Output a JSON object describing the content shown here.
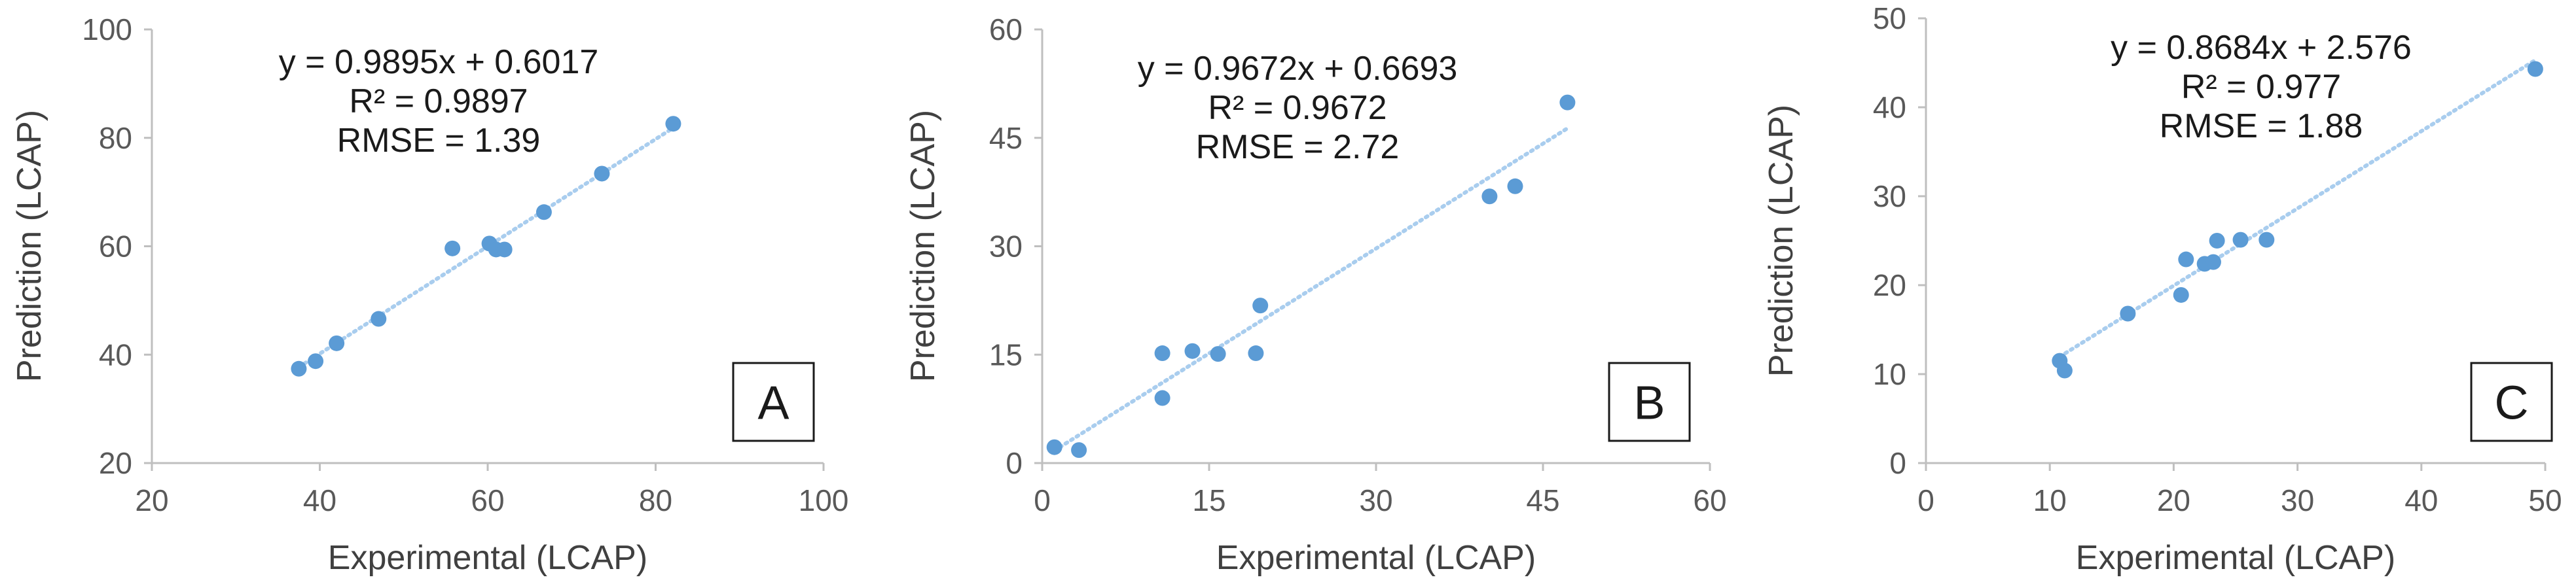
{
  "chart_data": [
    {
      "type": "scatter",
      "panel_label": "A",
      "xlabel": "Experimental (LCAP)",
      "ylabel": "Prediction (LCAP)",
      "xlim": [
        20,
        100
      ],
      "ylim": [
        20,
        100
      ],
      "xticks": [
        "20",
        "40",
        "60",
        "80",
        "100"
      ],
      "yticks": [
        "20",
        "40",
        "60",
        "80",
        "100"
      ],
      "points": [
        [
          37.5,
          37.4
        ],
        [
          39.5,
          38.8
        ],
        [
          42,
          42.1
        ],
        [
          47,
          46.6
        ],
        [
          55.8,
          59.6
        ],
        [
          60.2,
          60.5
        ],
        [
          61,
          59.4
        ],
        [
          62,
          59.4
        ],
        [
          66.7,
          66.3
        ],
        [
          73.6,
          73.4
        ],
        [
          82.1,
          82.6
        ]
      ],
      "trendline": {
        "slope": 0.9895,
        "intercept": 0.6017,
        "x_range": [
          37.5,
          82.1
        ]
      },
      "annotation": [
        "y = 0.9895x + 0.6017",
        "R² = 0.9897",
        "RMSE = 1.39"
      ],
      "marker_color": "#5b9bd5",
      "trend_color": "#a9cdee"
    },
    {
      "type": "scatter",
      "panel_label": "B",
      "xlabel": "Experimental (LCAP)",
      "ylabel": "Prediction (LCAP)",
      "xlim": [
        0,
        60
      ],
      "ylim": [
        0,
        60
      ],
      "xticks": [
        "0",
        "15",
        "30",
        "45",
        "60"
      ],
      "yticks": [
        "0",
        "15",
        "30",
        "45",
        "60"
      ],
      "points": [
        [
          1.1,
          2.2
        ],
        [
          3.3,
          1.8
        ],
        [
          10.8,
          9
        ],
        [
          10.8,
          15.2
        ],
        [
          13.5,
          15.5
        ],
        [
          15.8,
          15.1
        ],
        [
          19.2,
          15.2
        ],
        [
          19.6,
          21.8
        ],
        [
          40.2,
          36.9
        ],
        [
          42.5,
          38.3
        ],
        [
          47.2,
          49.9
        ]
      ],
      "trendline": {
        "slope": 0.9672,
        "intercept": 0.6693,
        "x_range": [
          1.1,
          47.2
        ]
      },
      "annotation": [
        "y = 0.9672x + 0.6693",
        "R² = 0.9672",
        "RMSE = 2.72"
      ],
      "marker_color": "#5b9bd5",
      "trend_color": "#a9cdee"
    },
    {
      "type": "scatter",
      "panel_label": "C",
      "xlabel": "Experimental (LCAP)",
      "ylabel": "Prediction (LCAP)",
      "xlim": [
        0,
        50
      ],
      "ylim": [
        0,
        50
      ],
      "xticks": [
        "0",
        "10",
        "20",
        "30",
        "40",
        "50"
      ],
      "yticks": [
        "0",
        "10",
        "20",
        "30",
        "40",
        "50"
      ],
      "points": [
        [
          10.8,
          11.5
        ],
        [
          11.2,
          10.4
        ],
        [
          16.3,
          16.8
        ],
        [
          20.6,
          18.9
        ],
        [
          21,
          22.9
        ],
        [
          22.5,
          22.4
        ],
        [
          23.2,
          22.6
        ],
        [
          23.5,
          25
        ],
        [
          25.4,
          25.1
        ],
        [
          27.5,
          25.1
        ],
        [
          49.2,
          44.3
        ]
      ],
      "trendline": {
        "slope": 0.8684,
        "intercept": 2.576,
        "x_range": [
          10.8,
          49.2
        ]
      },
      "annotation": [
        "y = 0.8684x + 2.576",
        "R² = 0.977",
        "RMSE = 1.88"
      ],
      "marker_color": "#5b9bd5",
      "trend_color": "#a9cdee"
    }
  ]
}
